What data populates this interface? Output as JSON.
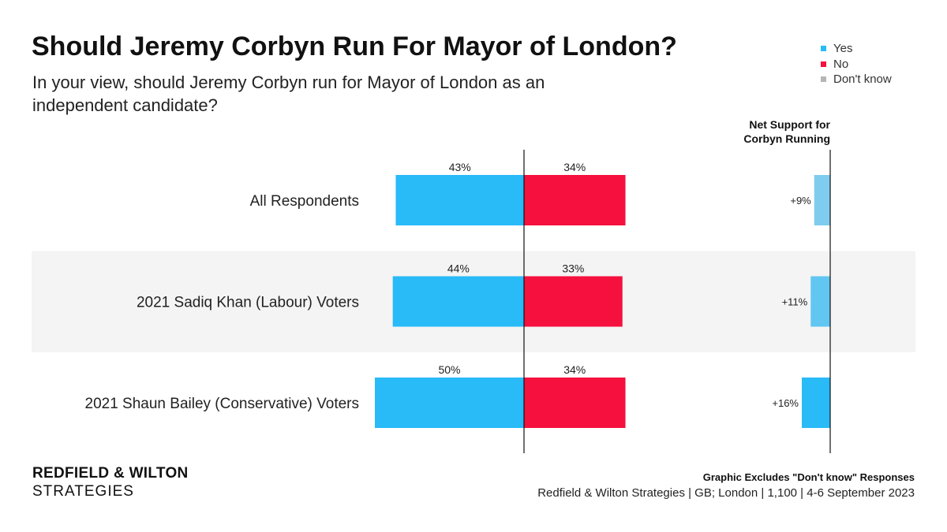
{
  "header": {
    "title": "Should Jeremy Corbyn Run For Mayor of London?",
    "subtitle": "In your view, should Jeremy Corbyn run for Mayor of London as an independent candidate?"
  },
  "legend": {
    "items": [
      {
        "label": "Yes",
        "color": "#29BAF8"
      },
      {
        "label": "No",
        "color": "#F5103D"
      },
      {
        "label": "Don't know",
        "color": "#B5B5B5"
      }
    ]
  },
  "chart_data": {
    "type": "bar",
    "orientation": "horizontal-diverging",
    "categories": [
      "All Respondents",
      "2021 Sadiq Khan (Labour) Voters",
      "2021 Shaun Bailey (Conservative) Voters"
    ],
    "series": [
      {
        "name": "Yes",
        "values": [
          43,
          44,
          50
        ],
        "labels": [
          "43%",
          "44%",
          "50%"
        ],
        "color": "#29BAF8"
      },
      {
        "name": "No",
        "values": [
          34,
          33,
          34
        ],
        "labels": [
          "34%",
          "33%",
          "34%"
        ],
        "color": "#F5103D"
      }
    ],
    "net": {
      "title_lines": [
        "Net Support for",
        "Corbyn Running"
      ],
      "values": [
        9,
        11,
        16
      ],
      "labels": [
        "+9%",
        "+11%",
        "+16%"
      ],
      "colors": [
        "#7FCDEE",
        "#62C6F2",
        "#29BAF8"
      ]
    },
    "row_band_color": "#F4F4F4",
    "grid": false
  },
  "footer": {
    "brand_name": "REDFIELD & WILTON",
    "brand_sub": "STRATEGIES",
    "note": "Graphic Excludes \"Don't know\" Responses",
    "source": "Redfield & Wilton Strategies | GB; London | 1,100 | 4-6 September 2023"
  }
}
